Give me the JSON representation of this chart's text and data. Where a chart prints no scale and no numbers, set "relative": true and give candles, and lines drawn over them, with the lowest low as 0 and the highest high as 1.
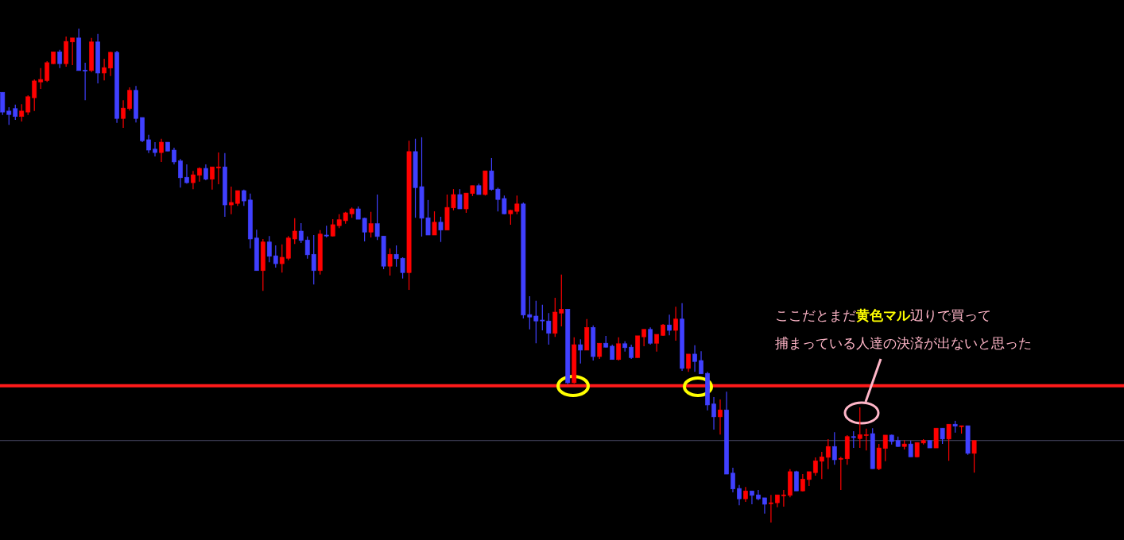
{
  "chart_data": {
    "type": "candlestick",
    "relative": true,
    "categories": [
      null,
      null,
      null,
      null,
      null,
      null,
      null,
      null,
      null,
      null,
      null,
      null,
      null,
      null,
      null,
      null,
      null,
      null,
      null,
      null,
      null,
      null,
      null,
      null,
      null,
      null,
      null,
      null,
      null,
      null,
      null,
      null,
      null,
      null,
      null,
      null,
      null,
      null,
      null,
      null,
      null,
      null,
      null,
      null,
      null,
      null,
      null,
      null,
      null,
      null,
      null,
      null,
      null,
      null,
      null,
      null,
      null,
      null,
      null,
      null,
      null,
      null,
      null,
      null,
      null,
      null,
      null,
      null,
      null,
      null,
      null,
      null,
      null,
      null,
      null,
      null,
      null,
      null,
      null,
      null,
      null,
      null,
      null,
      null,
      null,
      null,
      null,
      null,
      null,
      null,
      null,
      null,
      null,
      null,
      null,
      null,
      null,
      null,
      null,
      null,
      null,
      null,
      null,
      null,
      null,
      null,
      null,
      null,
      null,
      null,
      null,
      null,
      null,
      null,
      null,
      null,
      null,
      null,
      null,
      null,
      null,
      null,
      null,
      null,
      null,
      null,
      null,
      null,
      null,
      null,
      null,
      null,
      null,
      null,
      null,
      null,
      null,
      null,
      null,
      null,
      null,
      null,
      null,
      null,
      null,
      null,
      null,
      null,
      null,
      null,
      null,
      null,
      null,
      null
    ],
    "ohlc": [
      [
        0.871,
        0.871,
        0.825,
        0.831
      ],
      [
        0.833,
        0.841,
        0.805,
        0.826
      ],
      [
        0.838,
        0.846,
        0.815,
        0.822
      ],
      [
        0.822,
        0.847,
        0.812,
        0.833
      ],
      [
        0.831,
        0.865,
        0.825,
        0.862
      ],
      [
        0.86,
        0.897,
        0.833,
        0.894
      ],
      [
        0.892,
        0.92,
        0.878,
        0.897
      ],
      [
        0.895,
        0.934,
        0.892,
        0.931
      ],
      [
        0.929,
        0.953,
        0.928,
        0.953
      ],
      [
        0.953,
        0.957,
        0.92,
        0.929
      ],
      [
        0.929,
        0.984,
        0.923,
        0.974
      ],
      [
        0.973,
        0.981,
        0.926,
        0.981
      ],
      [
        0.981,
        1.0,
        0.915,
        0.915
      ],
      [
        0.916,
        0.931,
        0.855,
        0.916
      ],
      [
        0.915,
        0.981,
        0.912,
        0.973
      ],
      [
        0.973,
        0.989,
        0.889,
        0.91
      ],
      [
        0.91,
        0.939,
        0.895,
        0.921
      ],
      [
        0.92,
        0.953,
        0.904,
        0.952
      ],
      [
        0.952,
        0.955,
        0.809,
        0.818
      ],
      [
        0.818,
        0.855,
        0.799,
        0.839
      ],
      [
        0.838,
        0.881,
        0.834,
        0.875
      ],
      [
        0.875,
        0.884,
        0.81,
        0.818
      ],
      [
        0.82,
        0.82,
        0.77,
        0.773
      ],
      [
        0.775,
        0.785,
        0.748,
        0.754
      ],
      [
        0.756,
        0.77,
        0.741,
        0.749
      ],
      [
        0.749,
        0.777,
        0.73,
        0.77
      ],
      [
        0.77,
        0.77,
        0.752,
        0.752
      ],
      [
        0.754,
        0.759,
        0.725,
        0.73
      ],
      [
        0.732,
        0.736,
        0.678,
        0.698
      ],
      [
        0.699,
        0.725,
        0.686,
        0.688
      ],
      [
        0.688,
        0.712,
        0.675,
        0.704
      ],
      [
        0.703,
        0.719,
        0.69,
        0.717
      ],
      [
        0.717,
        0.725,
        0.693,
        0.695
      ],
      [
        0.695,
        0.72,
        0.674,
        0.72
      ],
      [
        0.72,
        0.749,
        0.685,
        0.72
      ],
      [
        0.72,
        0.748,
        0.619,
        0.643
      ],
      [
        0.643,
        0.68,
        0.624,
        0.648
      ],
      [
        0.646,
        0.672,
        0.641,
        0.672
      ],
      [
        0.672,
        0.674,
        0.641,
        0.651
      ],
      [
        0.653,
        0.666,
        0.555,
        0.574
      ],
      [
        0.576,
        0.593,
        0.51,
        0.51
      ],
      [
        0.51,
        0.574,
        0.469,
        0.568
      ],
      [
        0.568,
        0.58,
        0.527,
        0.539
      ],
      [
        0.54,
        0.561,
        0.516,
        0.524
      ],
      [
        0.524,
        0.563,
        0.506,
        0.537
      ],
      [
        0.535,
        0.58,
        0.531,
        0.576
      ],
      [
        0.574,
        0.616,
        0.564,
        0.59
      ],
      [
        0.59,
        0.606,
        0.566,
        0.571
      ],
      [
        0.572,
        0.579,
        0.534,
        0.542
      ],
      [
        0.543,
        0.582,
        0.482,
        0.51
      ],
      [
        0.51,
        0.592,
        0.502,
        0.584
      ],
      [
        0.582,
        0.601,
        0.577,
        0.582
      ],
      [
        0.58,
        0.614,
        0.579,
        0.603
      ],
      [
        0.601,
        0.624,
        0.596,
        0.613
      ],
      [
        0.611,
        0.629,
        0.605,
        0.627
      ],
      [
        0.625,
        0.638,
        0.617,
        0.635
      ],
      [
        0.635,
        0.64,
        0.614,
        0.614
      ],
      [
        0.616,
        0.617,
        0.569,
        0.588
      ],
      [
        0.588,
        0.629,
        0.577,
        0.605
      ],
      [
        0.605,
        0.664,
        0.572,
        0.579
      ],
      [
        0.58,
        0.58,
        0.513,
        0.519
      ],
      [
        0.519,
        0.555,
        0.5,
        0.543
      ],
      [
        0.543,
        0.561,
        0.518,
        0.534
      ],
      [
        0.535,
        0.537,
        0.494,
        0.506
      ],
      [
        0.506,
        0.773,
        0.471,
        0.751
      ],
      [
        0.751,
        0.777,
        0.617,
        0.678
      ],
      [
        0.68,
        0.78,
        0.579,
        0.616
      ],
      [
        0.617,
        0.653,
        0.582,
        0.582
      ],
      [
        0.582,
        0.63,
        0.582,
        0.608
      ],
      [
        0.608,
        0.619,
        0.568,
        0.592
      ],
      [
        0.592,
        0.664,
        0.592,
        0.638
      ],
      [
        0.637,
        0.675,
        0.632,
        0.664
      ],
      [
        0.664,
        0.675,
        0.635,
        0.635
      ],
      [
        0.635,
        0.667,
        0.627,
        0.667
      ],
      [
        0.666,
        0.682,
        0.661,
        0.682
      ],
      [
        0.682,
        0.686,
        0.664,
        0.664
      ],
      [
        0.664,
        0.712,
        0.662,
        0.712
      ],
      [
        0.712,
        0.738,
        0.672,
        0.674
      ],
      [
        0.675,
        0.678,
        0.63,
        0.654
      ],
      [
        0.656,
        0.662,
        0.624,
        0.625
      ],
      [
        0.625,
        0.633,
        0.603,
        0.632
      ],
      [
        0.63,
        0.662,
        0.624,
        0.645
      ],
      [
        0.645,
        0.648,
        0.413,
        0.42
      ],
      [
        0.421,
        0.458,
        0.391,
        0.416
      ],
      [
        0.418,
        0.449,
        0.363,
        0.408
      ],
      [
        0.41,
        0.441,
        0.389,
        0.41
      ],
      [
        0.408,
        0.424,
        0.36,
        0.383
      ],
      [
        0.383,
        0.455,
        0.376,
        0.426
      ],
      [
        0.424,
        0.502,
        0.397,
        0.432
      ],
      [
        0.432,
        0.432,
        0.28,
        0.283
      ],
      [
        0.283,
        0.375,
        0.281,
        0.36
      ],
      [
        0.36,
        0.371,
        0.322,
        0.349
      ],
      [
        0.349,
        0.412,
        0.349,
        0.395
      ],
      [
        0.395,
        0.399,
        0.328,
        0.336
      ],
      [
        0.336,
        0.363,
        0.331,
        0.363
      ],
      [
        0.363,
        0.378,
        0.354,
        0.355
      ],
      [
        0.357,
        0.36,
        0.33,
        0.33
      ],
      [
        0.33,
        0.375,
        0.328,
        0.362
      ],
      [
        0.362,
        0.367,
        0.346,
        0.354
      ],
      [
        0.355,
        0.36,
        0.331,
        0.334
      ],
      [
        0.334,
        0.378,
        0.333,
        0.378
      ],
      [
        0.376,
        0.391,
        0.357,
        0.391
      ],
      [
        0.391,
        0.395,
        0.36,
        0.363
      ],
      [
        0.363,
        0.381,
        0.346,
        0.381
      ],
      [
        0.379,
        0.402,
        0.378,
        0.4
      ],
      [
        0.4,
        0.421,
        0.379,
        0.389
      ],
      [
        0.389,
        0.437,
        0.368,
        0.412
      ],
      [
        0.412,
        0.444,
        0.307,
        0.312
      ],
      [
        0.312,
        0.341,
        0.305,
        0.341
      ],
      [
        0.341,
        0.359,
        0.305,
        0.326
      ],
      [
        0.328,
        0.347,
        0.301,
        0.301
      ],
      [
        0.302,
        0.305,
        0.227,
        0.238
      ],
      [
        0.24,
        0.254,
        0.188,
        0.214
      ],
      [
        0.214,
        0.249,
        0.178,
        0.228
      ],
      [
        0.228,
        0.265,
        0.098,
        0.098
      ],
      [
        0.1,
        0.111,
        0.061,
        0.068
      ],
      [
        0.069,
        0.076,
        0.035,
        0.048
      ],
      [
        0.048,
        0.072,
        0.042,
        0.064
      ],
      [
        0.064,
        0.064,
        0.037,
        0.055
      ],
      [
        0.056,
        0.066,
        0.045,
        0.048
      ],
      [
        0.05,
        0.05,
        0.018,
        0.037
      ],
      [
        0.039,
        0.056,
        0.0,
        0.04
      ],
      [
        0.04,
        0.056,
        0.031,
        0.056
      ],
      [
        0.055,
        0.066,
        0.032,
        0.056
      ],
      [
        0.055,
        0.108,
        0.051,
        0.103
      ],
      [
        0.103,
        0.105,
        0.064,
        0.064
      ],
      [
        0.064,
        0.098,
        0.063,
        0.088
      ],
      [
        0.087,
        0.103,
        0.074,
        0.103
      ],
      [
        0.101,
        0.132,
        0.095,
        0.125
      ],
      [
        0.124,
        0.143,
        0.088,
        0.133
      ],
      [
        0.132,
        0.169,
        0.108,
        0.154
      ],
      [
        0.154,
        0.183,
        0.117,
        0.127
      ],
      [
        0.129,
        0.133,
        0.066,
        0.13
      ],
      [
        0.129,
        0.177,
        0.117,
        0.174
      ],
      [
        0.174,
        0.185,
        0.151,
        0.172
      ],
      [
        0.17,
        0.233,
        0.151,
        0.178
      ],
      [
        0.177,
        0.19,
        0.146,
        0.178
      ],
      [
        0.18,
        0.191,
        0.109,
        0.109
      ],
      [
        0.109,
        0.159,
        0.106,
        0.151
      ],
      [
        0.15,
        0.177,
        0.124,
        0.177
      ],
      [
        0.177,
        0.178,
        0.158,
        0.164
      ],
      [
        0.166,
        0.174,
        0.153,
        0.154
      ],
      [
        0.154,
        0.167,
        0.148,
        0.159
      ],
      [
        0.159,
        0.166,
        0.133,
        0.133
      ],
      [
        0.133,
        0.162,
        0.132,
        0.162
      ],
      [
        0.161,
        0.169,
        0.158,
        0.166
      ],
      [
        0.166,
        0.166,
        0.151,
        0.151
      ],
      [
        0.151,
        0.191,
        0.151,
        0.191
      ],
      [
        0.191,
        0.191,
        0.159,
        0.169
      ],
      [
        0.169,
        0.199,
        0.125,
        0.199
      ],
      [
        0.199,
        0.206,
        0.182,
        0.195
      ],
      [
        0.195,
        0.196,
        0.18,
        0.196
      ],
      [
        0.196,
        0.196,
        0.137,
        0.14
      ],
      [
        0.14,
        0.166,
        0.101,
        0.166
      ]
    ],
    "colors": [
      "#4040ff",
      "#4040ff",
      "#4040ff",
      "#ff0000",
      "#ff0000",
      "#ff0000",
      "#ff0000",
      "#ff0000",
      "#ff0000",
      "#4040ff",
      "#ff0000",
      "#ff0000",
      "#4040ff",
      "#4040ff",
      "#ff0000",
      "#4040ff",
      "#ff0000",
      "#ff0000",
      "#4040ff",
      "#ff0000",
      "#ff0000",
      "#4040ff",
      "#4040ff",
      "#4040ff",
      "#4040ff",
      "#ff0000",
      "#4040ff",
      "#4040ff",
      "#4040ff",
      "#4040ff",
      "#ff0000",
      "#ff0000",
      "#4040ff",
      "#ff0000",
      "#ff0000",
      "#4040ff",
      "#ff0000",
      "#ff0000",
      "#4040ff",
      "#4040ff",
      "#4040ff",
      "#ff0000",
      "#4040ff",
      "#4040ff",
      "#ff0000",
      "#ff0000",
      "#ff0000",
      "#4040ff",
      "#4040ff",
      "#4040ff",
      "#ff0000",
      "#4040ff",
      "#ff0000",
      "#ff0000",
      "#ff0000",
      "#ff0000",
      "#4040ff",
      "#4040ff",
      "#ff0000",
      "#4040ff",
      "#4040ff",
      "#ff0000",
      "#4040ff",
      "#4040ff",
      "#ff0000",
      "#4040ff",
      "#4040ff",
      "#4040ff",
      "#ff0000",
      "#4040ff",
      "#ff0000",
      "#ff0000",
      "#4040ff",
      "#ff0000",
      "#ff0000",
      "#4040ff",
      "#ff0000",
      "#4040ff",
      "#4040ff",
      "#4040ff",
      "#ff0000",
      "#ff0000",
      "#4040ff",
      "#4040ff",
      "#4040ff",
      "#4040ff",
      "#4040ff",
      "#ff0000",
      "#ff0000",
      "#4040ff",
      "#ff0000",
      "#4040ff",
      "#ff0000",
      "#4040ff",
      "#ff0000",
      "#4040ff",
      "#4040ff",
      "#ff0000",
      "#4040ff",
      "#4040ff",
      "#ff0000",
      "#ff0000",
      "#4040ff",
      "#ff0000",
      "#ff0000",
      "#4040ff",
      "#ff0000",
      "#4040ff",
      "#ff0000",
      "#4040ff",
      "#4040ff",
      "#4040ff",
      "#4040ff",
      "#ff0000",
      "#4040ff",
      "#4040ff",
      "#4040ff",
      "#ff0000",
      "#4040ff",
      "#4040ff",
      "#4040ff",
      "#ff0000",
      "#ff0000",
      "#ff0000",
      "#ff0000",
      "#4040ff",
      "#ff0000",
      "#ff0000",
      "#ff0000",
      "#ff0000",
      "#ff0000",
      "#4040ff",
      "#ff0000",
      "#ff0000",
      "#4040ff",
      "#ff0000",
      "#ff0000",
      "#4040ff",
      "#ff0000",
      "#ff0000",
      "#4040ff",
      "#4040ff",
      "#ff0000",
      "#4040ff",
      "#ff0000",
      "#ff0000",
      "#4040ff",
      "#ff0000",
      "#4040ff",
      "#ff0000",
      "#4040ff",
      "#ff0000",
      "#4040ff",
      "#ff0000"
    ],
    "ref_lines": [
      {
        "axis": "y",
        "value": 0.277,
        "color": "#ff1a1a"
      },
      {
        "axis": "y",
        "value": 0.166,
        "color": "#4a4a66"
      }
    ],
    "annotations": [
      "ここだとまだ**黄色マル**辺りで買って",
      "捕まっている人達の決済が出ないと思った"
    ]
  }
}
